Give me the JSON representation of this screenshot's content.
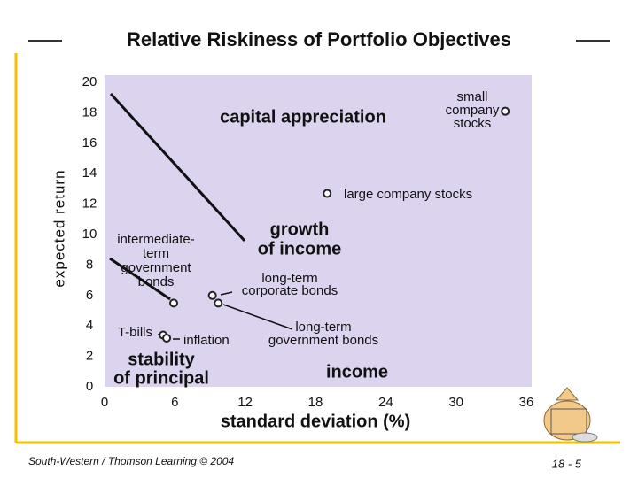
{
  "chart_data": {
    "type": "scatter",
    "title": "Relative Riskiness of Portfolio Objectives",
    "xlabel": "standard deviation (%)",
    "ylabel": "expected return",
    "xlim": [
      0,
      36
    ],
    "ylim": [
      0,
      20
    ],
    "xticks": [
      0,
      6,
      12,
      18,
      24,
      30,
      36
    ],
    "yticks": [
      0,
      2,
      4,
      6,
      8,
      10,
      12,
      14,
      16,
      18,
      20
    ],
    "x": [
      34.2,
      19.0,
      9.2,
      9.7,
      5.9,
      5.0,
      5.3
    ],
    "values": [
      18.1,
      12.7,
      6.0,
      5.5,
      5.5,
      3.4,
      3.2
    ],
    "point_labels": [
      [
        "small",
        "company",
        "stocks"
      ],
      [
        "large company stocks"
      ],
      [
        "long-term",
        "corporate bonds"
      ],
      [
        "long-term",
        "government bonds"
      ],
      [
        "intermediate-",
        "term",
        "government",
        "bonds"
      ],
      [
        "T-bills"
      ],
      [
        "inflation"
      ]
    ],
    "region_labels": [
      [
        "capital appreciation"
      ],
      [
        "growth",
        "of income"
      ],
      [
        "income"
      ],
      [
        "stability",
        "of principal"
      ]
    ],
    "background": "#dcd3ee",
    "marker_color": "#222222"
  },
  "footer": {
    "source": "South-Western / Thomson Learning © 2004",
    "page": "18 - 5"
  }
}
